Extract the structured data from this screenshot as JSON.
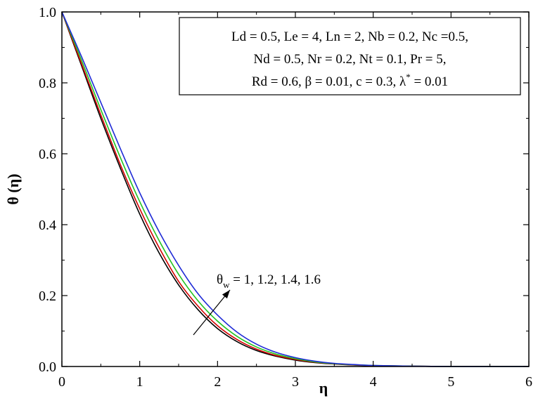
{
  "chart_data": {
    "type": "line",
    "xlabel": "η",
    "ylabel": "θ (η)",
    "xlim": [
      0,
      6
    ],
    "ylim": [
      0,
      1
    ],
    "x_ticks": [
      "0",
      "1",
      "2",
      "3",
      "4",
      "5",
      "6"
    ],
    "y_ticks": [
      "0.0",
      "0.2",
      "0.4",
      "0.6",
      "0.8",
      "1.0"
    ],
    "grid": false,
    "legend_position": "top-right",
    "parameters": [
      "Ld = 0.5, Le = 4, Ln = 2, Nb = 0.2, Nc =0.5,",
      "Nd = 0.5, Nr = 0.2, Nt = 0.1, Pr = 5,",
      {
        "before": "Rd = 0.6, β = 0.01, c = 0.3, λ",
        "sup": "*",
        "after": " = 0.01"
      }
    ],
    "annotation": {
      "symbol": "θ",
      "sub": "w",
      "text": " = 1, 1.2, 1.4, 1.6"
    },
    "series": [
      {
        "color": "#000000",
        "x": [
          0,
          0.25,
          0.5,
          0.75,
          1.0,
          1.25,
          1.5,
          1.75,
          2.0,
          2.25,
          2.5,
          2.75,
          3.0,
          3.25,
          3.5,
          3.75,
          4.0,
          4.5,
          5.0,
          5.5,
          6.0
        ],
        "y": [
          1.0,
          0.85,
          0.7,
          0.56,
          0.43,
          0.32,
          0.23,
          0.16,
          0.107,
          0.07,
          0.045,
          0.029,
          0.018,
          0.011,
          0.007,
          0.004,
          0.002,
          0.001,
          0.0,
          0.0,
          0.0
        ]
      },
      {
        "color": "#d40000",
        "x": [
          0,
          0.25,
          0.5,
          0.75,
          1.0,
          1.25,
          1.5,
          1.75,
          2.0,
          2.25,
          2.5,
          2.75,
          3.0,
          3.25,
          3.5,
          3.75,
          4.0,
          4.5,
          5.0,
          5.5,
          6.0
        ],
        "y": [
          1.0,
          0.855,
          0.71,
          0.57,
          0.445,
          0.335,
          0.24,
          0.17,
          0.115,
          0.076,
          0.049,
          0.031,
          0.02,
          0.012,
          0.0075,
          0.0045,
          0.0025,
          0.001,
          0.0,
          0.0,
          0.0
        ]
      },
      {
        "color": "#22c322",
        "x": [
          0,
          0.25,
          0.5,
          0.75,
          1.0,
          1.25,
          1.5,
          1.75,
          2.0,
          2.25,
          2.5,
          2.75,
          3.0,
          3.25,
          3.5,
          3.75,
          4.0,
          4.5,
          5.0,
          5.5,
          6.0
        ],
        "y": [
          1.0,
          0.865,
          0.725,
          0.59,
          0.465,
          0.355,
          0.26,
          0.185,
          0.128,
          0.085,
          0.055,
          0.035,
          0.022,
          0.013,
          0.008,
          0.005,
          0.003,
          0.001,
          0.0,
          0.0,
          0.0
        ]
      },
      {
        "color": "#1f2bd6",
        "x": [
          0,
          0.25,
          0.5,
          0.75,
          1.0,
          1.25,
          1.5,
          1.75,
          2.0,
          2.25,
          2.5,
          2.75,
          3.0,
          3.25,
          3.5,
          3.75,
          4.0,
          4.5,
          5.0,
          5.5,
          6.0
        ],
        "y": [
          1.0,
          0.875,
          0.745,
          0.615,
          0.49,
          0.38,
          0.285,
          0.205,
          0.145,
          0.097,
          0.063,
          0.04,
          0.025,
          0.015,
          0.009,
          0.0055,
          0.003,
          0.001,
          0.0,
          0.0,
          0.0
        ]
      }
    ]
  }
}
